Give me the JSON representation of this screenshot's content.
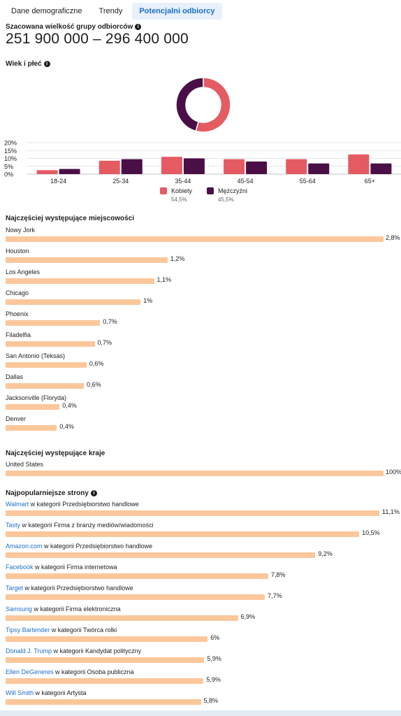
{
  "tabs": [
    {
      "label": "Dane demograficzne",
      "active": false
    },
    {
      "label": "Trendy",
      "active": false
    },
    {
      "label": "Potencjalni odbiorcy",
      "active": true
    }
  ],
  "audience": {
    "label": "Szacowana wielkość grupy odbiorców",
    "value": "251 900 000 – 296 400 000"
  },
  "age_gender": {
    "label": "Wiek i płeć"
  },
  "chart_data": [
    {
      "type": "pie",
      "donut": true,
      "labels": [
        "Kobiety",
        "Mężczyźni"
      ],
      "values": [
        54.5,
        45.5
      ],
      "colors": [
        "#e45b62",
        "#4a0f47"
      ]
    },
    {
      "type": "bar",
      "categories": [
        "18-24",
        "25-34",
        "35-44",
        "45-54",
        "55-64",
        "65+"
      ],
      "series": [
        {
          "name": "Kobiety",
          "values": [
            2.5,
            8.5,
            11,
            9.5,
            9.5,
            12.5
          ],
          "color": "#e45b62"
        },
        {
          "name": "Mężczyźni",
          "values": [
            3.3,
            9.5,
            10,
            8,
            6.8,
            6.8
          ],
          "color": "#4a0f47"
        }
      ],
      "yticks": [
        "0%",
        "5%",
        "10%",
        "15%",
        "20%"
      ],
      "ylim": [
        0,
        20
      ],
      "grid": true
    }
  ],
  "legend": [
    {
      "name": "Kobiety",
      "pct": "54,5%",
      "color": "#e45b62"
    },
    {
      "name": "Mężczyźni",
      "pct": "45,5%",
      "color": "#4a0f47"
    }
  ],
  "cities": {
    "title": "Najczęściej występujące miejscowości",
    "items": [
      {
        "name": "Nowy Jork",
        "value": 2.8,
        "label": "2,8%"
      },
      {
        "name": "Houston",
        "value": 1.2,
        "label": "1,2%"
      },
      {
        "name": "Los Angeles",
        "value": 1.1,
        "label": "1,1%"
      },
      {
        "name": "Chicago",
        "value": 1.0,
        "label": "1%"
      },
      {
        "name": "Phoenix",
        "value": 0.7,
        "label": "0,7%"
      },
      {
        "name": "Filadelfia",
        "value": 0.66,
        "label": "0,7%"
      },
      {
        "name": "San Antonio (Teksas)",
        "value": 0.6,
        "label": "0,6%"
      },
      {
        "name": "Dallas",
        "value": 0.58,
        "label": "0,6%"
      },
      {
        "name": "Jacksonville (Floryda)",
        "value": 0.4,
        "label": "0,4%"
      },
      {
        "name": "Denver",
        "value": 0.38,
        "label": "0,4%"
      }
    ]
  },
  "countries": {
    "title": "Najczęściej występujące kraje",
    "items": [
      {
        "name": "United States",
        "value": 100,
        "label": "100%"
      }
    ]
  },
  "pages": {
    "title": "Najpopularniejsze strony",
    "items": [
      {
        "link": "Walmart",
        "category": " w kategorii Przedsiębiorstwo handlowe",
        "value": 11.1,
        "label": "11,1%"
      },
      {
        "link": "Tasty",
        "category": " w kategorii Firma z branży mediów/wiadomości",
        "value": 10.5,
        "label": "10,5%"
      },
      {
        "link": "Amazon.com",
        "category": " w kategorii Przedsiębiorstwo handlowe",
        "value": 9.2,
        "label": "9,2%"
      },
      {
        "link": "Facebook",
        "category": " w kategorii Firma internetowa",
        "value": 7.8,
        "label": "7,8%"
      },
      {
        "link": "Target",
        "category": " w kategorii Przedsiębiorstwo handlowe",
        "value": 7.7,
        "label": "7,7%"
      },
      {
        "link": "Samsung",
        "category": " w kategorii Firma elektroniczna",
        "value": 6.9,
        "label": "6,9%"
      },
      {
        "link": "Tipsy Bartender",
        "category": " w kategorii Twórca rolki",
        "value": 6.0,
        "label": "6%"
      },
      {
        "link": "Donald J. Trump",
        "category": " w kategorii Kandydat polityczny",
        "value": 5.9,
        "label": "5,9%"
      },
      {
        "link": "Ellen DeGeneres",
        "category": " w kategorii Osoba publiczna",
        "value": 5.88,
        "label": "5,9%"
      },
      {
        "link": "Will Smith",
        "category": " w kategorii Artysta",
        "value": 5.8,
        "label": "5,8%"
      }
    ]
  }
}
